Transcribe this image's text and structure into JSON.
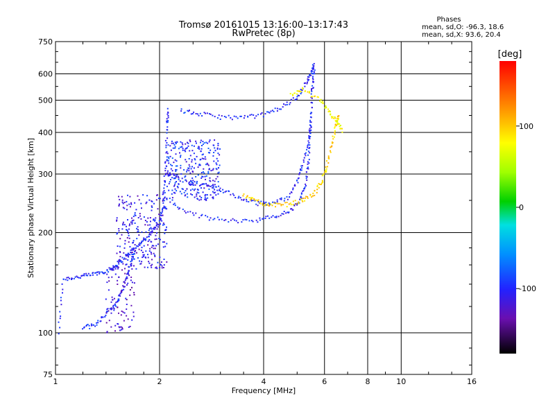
{
  "chart_data": {
    "type": "scatter",
    "title": "Tromsø 20161015 13:16:00–13:17:43",
    "subtitle": "RwPretec (8p)",
    "xlabel": "Frequency [MHz]",
    "ylabel": "Stationary phase Virtual Height [km]",
    "x_scale": "log",
    "y_scale": "log",
    "xlim": [
      1,
      16
    ],
    "ylim": [
      75,
      750
    ],
    "x_ticks": [
      "1",
      "2",
      "4",
      "6",
      "8",
      "10",
      "16"
    ],
    "y_ticks": [
      "75",
      "100",
      "200",
      "300",
      "400",
      "500",
      "600",
      "750"
    ],
    "grid": true,
    "stats": {
      "heading": "Phases",
      "o_line": "mean, sd,O: -96.3, 18.6",
      "x_line": "mean, sd,X:  93.6, 20.4"
    },
    "colorbar": {
      "label": "[deg]",
      "ticks": [
        "100",
        "0",
        "-100"
      ],
      "tick_values": [
        100,
        0,
        -100
      ],
      "range": [
        -180,
        180
      ]
    },
    "traces": [
      {
        "phase": -100,
        "points": [
          [
            1.02,
            100
          ],
          [
            1.05,
            145
          ],
          [
            1.15,
            147
          ],
          [
            1.25,
            149
          ],
          [
            1.35,
            152
          ],
          [
            1.45,
            155
          ],
          [
            1.5,
            160
          ],
          [
            1.6,
            170
          ],
          [
            1.7,
            180
          ],
          [
            1.8,
            190
          ],
          [
            1.9,
            200
          ],
          [
            2.0,
            215
          ],
          [
            2.05,
            240
          ],
          [
            2.07,
            280
          ],
          [
            2.09,
            330
          ],
          [
            2.1,
            420
          ],
          [
            2.12,
            470
          ]
        ]
      },
      {
        "phase": -100,
        "points": [
          [
            1.2,
            104
          ],
          [
            1.3,
            105
          ],
          [
            1.4,
            115
          ],
          [
            1.5,
            122
          ],
          [
            1.55,
            132
          ],
          [
            1.6,
            145
          ],
          [
            1.65,
            160
          ],
          [
            1.7,
            175
          ]
        ]
      },
      {
        "phase": -100,
        "points": [
          [
            2.05,
            260
          ],
          [
            2.3,
            235
          ],
          [
            2.7,
            222
          ],
          [
            3.2,
            217
          ],
          [
            3.8,
            218
          ],
          [
            4.3,
            223
          ],
          [
            4.8,
            233
          ],
          [
            5.1,
            250
          ],
          [
            5.3,
            280
          ],
          [
            5.4,
            330
          ],
          [
            5.45,
            400
          ],
          [
            5.5,
            480
          ],
          [
            5.55,
            560
          ],
          [
            5.6,
            620
          ]
        ]
      },
      {
        "phase": -100,
        "points": [
          [
            2.3,
            465
          ],
          [
            2.6,
            455
          ],
          [
            3.0,
            445
          ],
          [
            3.5,
            443
          ],
          [
            4.0,
            452
          ],
          [
            4.5,
            475
          ],
          [
            5.0,
            510
          ],
          [
            5.3,
            560
          ],
          [
            5.5,
            610
          ],
          [
            5.6,
            640
          ]
        ]
      },
      {
        "phase": -100,
        "points": [
          [
            2.1,
            300
          ],
          [
            2.3,
            290
          ],
          [
            2.6,
            280
          ],
          [
            3.0,
            270
          ],
          [
            3.4,
            255
          ],
          [
            3.8,
            245
          ],
          [
            4.2,
            245
          ],
          [
            4.7,
            255
          ],
          [
            5.0,
            285
          ],
          [
            5.2,
            320
          ],
          [
            5.4,
            380
          ],
          [
            5.5,
            440
          ]
        ]
      },
      {
        "phase": 95,
        "points": [
          [
            3.5,
            260
          ],
          [
            3.8,
            248
          ],
          [
            4.2,
            242
          ],
          [
            4.7,
            243
          ],
          [
            5.2,
            250
          ],
          [
            5.6,
            262
          ],
          [
            5.9,
            285
          ],
          [
            6.1,
            320
          ],
          [
            6.3,
            370
          ],
          [
            6.5,
            420
          ],
          [
            6.6,
            450
          ]
        ]
      },
      {
        "phase": 80,
        "points": [
          [
            4.8,
            520
          ],
          [
            5.2,
            540
          ],
          [
            5.8,
            500
          ],
          [
            6.2,
            460
          ],
          [
            6.5,
            430
          ],
          [
            6.8,
            400
          ]
        ]
      }
    ],
    "scatter_clusters": [
      {
        "phase": -100,
        "x": [
          2.1,
          3.0
        ],
        "y": [
          250,
          380
        ],
        "n": 300
      },
      {
        "phase": -110,
        "x": [
          1.5,
          2.1
        ],
        "y": [
          155,
          260
        ],
        "n": 260
      },
      {
        "phase": -120,
        "x": [
          1.4,
          1.7
        ],
        "y": [
          100,
          160
        ],
        "n": 90
      }
    ]
  }
}
